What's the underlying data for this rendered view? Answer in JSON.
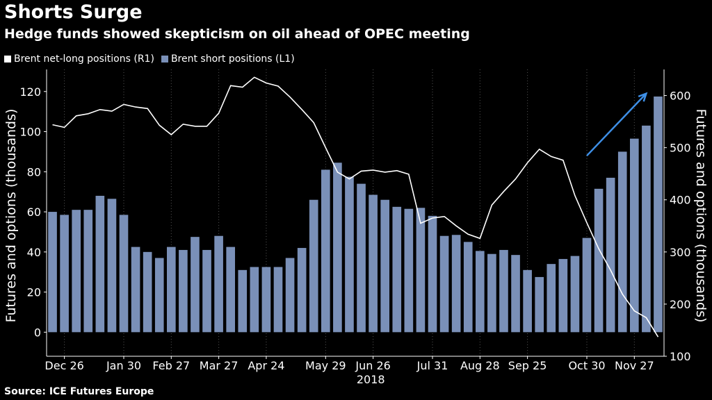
{
  "title": "Shorts Surge",
  "subtitle": "Hedge funds showed skepticism on oil ahead of OPEC meeting",
  "source": "Source: ICE Futures Europe",
  "colors": {
    "bar": "#7a90b8",
    "line": "#ffffff",
    "arrow": "#3e8fe6",
    "background": "#000000"
  },
  "chart_data": {
    "type": "bar",
    "legend": [
      {
        "label": "Brent net-long positions (R1)",
        "kind": "line"
      },
      {
        "label": "Brent short positions (L1)",
        "kind": "bar"
      }
    ],
    "legend_position": "top-left",
    "grid": "vertical dotted",
    "ylabel_left": "Futures and options (thousands)",
    "ylabel_right": "Futures and options (thousands)",
    "y_left": {
      "min": -12,
      "max": 131,
      "ticks": [
        0,
        20,
        40,
        60,
        80,
        100,
        120
      ]
    },
    "y_right": {
      "min": 100,
      "max": 650,
      "ticks": [
        100,
        200,
        300,
        400,
        500,
        600
      ]
    },
    "x_tick_labels": [
      {
        "label": "Dec 26",
        "index": 1.5
      },
      {
        "label": "Jan 30",
        "index": 6.5
      },
      {
        "label": "Feb 27",
        "index": 10.5
      },
      {
        "label": "Mar 27",
        "index": 14.5
      },
      {
        "label": "Apr 24",
        "index": 18.5
      },
      {
        "label": "May 29",
        "index": 23.5
      },
      {
        "label": "Jun 26",
        "index": 27.5
      },
      {
        "label": "Jul 31",
        "index": 32.5
      },
      {
        "label": "Aug 28",
        "index": 36.5
      },
      {
        "label": "Sep 25",
        "index": 40.5
      },
      {
        "label": "Oct 30",
        "index": 45.5
      },
      {
        "label": "Nov 27",
        "index": 49.5
      }
    ],
    "year_label": {
      "label": "2018",
      "index": 27.3
    },
    "short_positions": [
      60,
      58.5,
      61,
      61,
      68,
      66.5,
      58.5,
      42.5,
      40,
      37,
      42.5,
      41,
      47.5,
      41,
      48,
      42.5,
      31,
      32.5,
      32.5,
      32.5,
      37,
      42,
      66,
      81,
      84.5,
      77.5,
      74,
      68.5,
      66,
      62.5,
      61.5,
      62,
      58,
      48,
      48.5,
      45,
      40.5,
      39,
      41,
      38.5,
      31,
      27.5,
      34,
      36.5,
      38,
      47,
      71.5,
      77,
      90,
      96.5,
      103,
      117.5
    ],
    "net_long_positions": [
      544,
      539,
      561,
      565,
      573,
      570,
      583,
      578,
      575,
      543,
      525,
      545,
      541,
      541,
      566,
      619,
      616,
      635,
      624,
      618,
      597,
      573,
      548,
      500,
      453,
      440,
      455,
      457,
      453,
      456,
      449,
      355,
      365,
      368,
      350,
      334,
      326,
      390,
      416,
      440,
      471,
      497,
      483,
      476,
      408,
      356,
      306,
      265,
      219,
      187,
      174,
      137
    ],
    "annotation": {
      "type": "arrow",
      "from": [
        45.5,
        88
      ],
      "to": [
        50.5,
        119
      ]
    }
  }
}
